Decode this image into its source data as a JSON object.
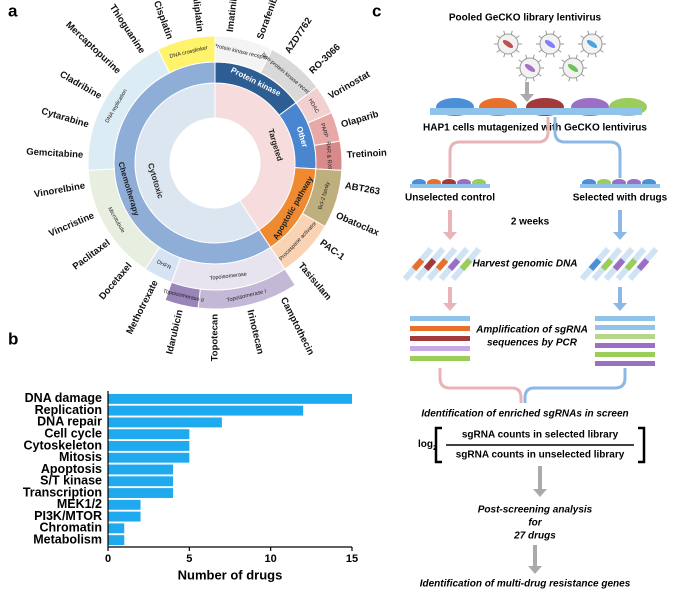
{
  "chart_data": [
    {
      "type": "sunburst",
      "panel_label": "a",
      "children": [
        {
          "name": "Targeted",
          "color": "#f6dcdc",
          "children": [
            {
              "name": "Protein kinase",
              "color": "#2e5d93",
              "children": [
                {
                  "name": "Protein kinase receptor",
                  "color": "#f4f4f4",
                  "children": [
                    {
                      "name": "Imatinib"
                    },
                    {
                      "name": "Sorafenib"
                    }
                  ]
                },
                {
                  "name": "Non-protein kinase receptor",
                  "color": "#d9d9d9",
                  "children": [
                    {
                      "name": "AZD7762"
                    },
                    {
                      "name": "RO-3066"
                    }
                  ]
                }
              ]
            },
            {
              "name": "Other",
              "color": "#4a86d0",
              "children": [
                {
                  "name": "HDAC",
                  "color": "#f2d0d0",
                  "children": [
                    {
                      "name": "Vorinostat"
                    }
                  ]
                },
                {
                  "name": "PARP",
                  "color": "#e8a8a8",
                  "children": [
                    {
                      "name": "Olaparib"
                    }
                  ]
                },
                {
                  "name": "RAR & RXR",
                  "color": "#d88a8a",
                  "children": [
                    {
                      "name": "Tretinoin"
                    }
                  ]
                }
              ]
            },
            {
              "name": "Apoptotic pathway",
              "color": "#f08a30",
              "children": [
                {
                  "name": "Bcl-2 family",
                  "color": "#bfae7e",
                  "children": [
                    {
                      "name": "ABT263"
                    },
                    {
                      "name": "Obatoclax"
                    }
                  ]
                },
                {
                  "name": "Procaspase activator",
                  "color": "#f9d3b4",
                  "children": [
                    {
                      "name": "PAC-1"
                    },
                    {
                      "name": "Tasisulam"
                    }
                  ]
                }
              ]
            }
          ]
        },
        {
          "name": "Cytotoxic",
          "color": "#dce6f1",
          "children": [
            {
              "name": "Chemotherapy",
              "color": "#8eaed8",
              "children": [
                {
                  "name": "Topoisomerase",
                  "color": "#e7e3ef",
                  "children": [
                    {
                      "name": "Topoisomerase I",
                      "color": "#c3b8d6",
                      "children": [
                        {
                          "name": "Camptothecin"
                        },
                        {
                          "name": "Irinotecan"
                        },
                        {
                          "name": "Topotecan"
                        }
                      ]
                    },
                    {
                      "name": "Topoisomerase II",
                      "color": "#9b84b8",
                      "children": [
                        {
                          "name": "Idarubicin"
                        }
                      ]
                    }
                  ]
                },
                {
                  "name": "DHFR",
                  "color": "#d6e3f2",
                  "children": [
                    {
                      "name": "Methotrexate"
                    }
                  ]
                },
                {
                  "name": "Microtubule",
                  "color": "#e9efe0",
                  "children": [
                    {
                      "name": "Docetaxel"
                    },
                    {
                      "name": "Paclitaxel"
                    },
                    {
                      "name": "Vincristine"
                    },
                    {
                      "name": "Vinorelbine"
                    }
                  ]
                },
                {
                  "name": "DNA replication",
                  "color": "#dcecf5",
                  "children": [
                    {
                      "name": "Gemcitabine"
                    },
                    {
                      "name": "Cytarabine"
                    },
                    {
                      "name": "Cladribine"
                    },
                    {
                      "name": "Mercaptopurine"
                    },
                    {
                      "name": "Thioguanine"
                    }
                  ]
                },
                {
                  "name": "DNA crosslinker",
                  "color": "#fff36b",
                  "children": [
                    {
                      "name": "Cisplatin"
                    },
                    {
                      "name": "Oxaliplatin"
                    }
                  ]
                }
              ]
            }
          ]
        }
      ]
    },
    {
      "type": "bar",
      "orientation": "horizontal",
      "panel_label": "b",
      "categories": [
        "DNA damage",
        "Replication",
        "DNA repair",
        "Cell cycle",
        "Cytoskeleton",
        "Mitosis",
        "Apoptosis",
        "S/T kinase",
        "Transcription",
        "MEK1/2",
        "PI3K/MTOR",
        "Chromatin",
        "Metabolism"
      ],
      "values": [
        15,
        12,
        7,
        5,
        5,
        5,
        4,
        4,
        4,
        2,
        2,
        1,
        1
      ],
      "color": "#1fa9ee",
      "xlabel": "Number of drugs",
      "xlim": [
        0,
        15
      ],
      "xticks": [
        0,
        5,
        10,
        15
      ]
    }
  ],
  "diagram": {
    "panel_label": "c",
    "library": "Pooled GeCKO library lentivirus",
    "cells": "HAP1 cells mutagenized with GeCKO lentivirus",
    "unselected": "Unselected control",
    "duration": "2 weeks",
    "selected": "Selected with drugs",
    "harvest": "Harvest genomic DNA",
    "amplification": [
      "Amplification of sgRNA",
      "sequences by PCR"
    ],
    "identification": "Identification of enriched sgRNAs in screen",
    "formula": {
      "log": "log",
      "subscript": "2",
      "numerator": "sgRNA counts in selected library",
      "denominator": "sgRNA counts in unselected library"
    },
    "analysis": [
      "Post-screening analysis",
      "for",
      "27 drugs"
    ],
    "result": "Identification of multi-drug resistance genes"
  }
}
